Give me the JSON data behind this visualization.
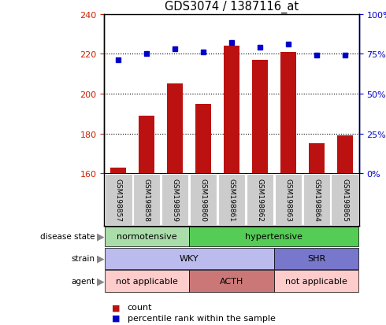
{
  "title": "GDS3074 / 1387116_at",
  "samples": [
    "GSM198857",
    "GSM198858",
    "GSM198859",
    "GSM198860",
    "GSM198861",
    "GSM198862",
    "GSM198863",
    "GSM198864",
    "GSM198865"
  ],
  "counts": [
    163,
    189,
    205,
    195,
    224,
    217,
    221,
    175,
    179
  ],
  "percentile_ranks": [
    71,
    75,
    78,
    76,
    82,
    79,
    81,
    74,
    74
  ],
  "ylim_left": [
    160,
    240
  ],
  "ylim_right": [
    0,
    100
  ],
  "yticks_left": [
    160,
    180,
    200,
    220,
    240
  ],
  "yticks_right": [
    0,
    25,
    50,
    75,
    100
  ],
  "bar_color": "#bb1111",
  "dot_color": "#0000cc",
  "disease_colors": {
    "normotensive": "#aaddaa",
    "hypertensive": "#55cc55"
  },
  "strain_colors": {
    "WKY": "#bbbbee",
    "SHR": "#7777cc"
  },
  "agent_colors": {
    "not_applicable": "#ffcccc",
    "ACTH": "#cc7777"
  },
  "left_axis_color": "#cc2200",
  "right_axis_color": "#0000cc",
  "tick_label_bg": "#cccccc",
  "legend_count_color": "#bb1111",
  "legend_pct_color": "#0000cc"
}
